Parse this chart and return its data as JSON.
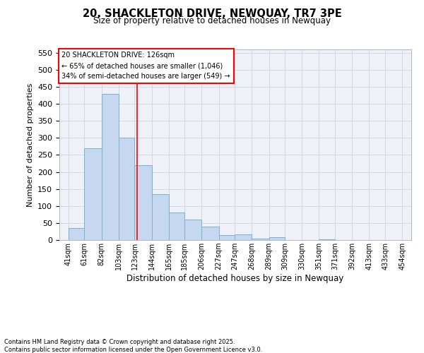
{
  "title": "20, SHACKLETON DRIVE, NEWQUAY, TR7 3PE",
  "subtitle": "Size of property relative to detached houses in Newquay",
  "xlabel": "Distribution of detached houses by size in Newquay",
  "ylabel": "Number of detached properties",
  "bar_left_edges": [
    41,
    61,
    82,
    103,
    123,
    144,
    165,
    185,
    206,
    227,
    247,
    268,
    289,
    309,
    330,
    351,
    371,
    392,
    413,
    433
  ],
  "bar_widths": [
    20,
    21,
    21,
    20,
    21,
    21,
    20,
    21,
    21,
    20,
    21,
    21,
    20,
    21,
    21,
    20,
    21,
    21,
    20,
    21
  ],
  "bar_heights": [
    35,
    270,
    430,
    300,
    220,
    135,
    80,
    60,
    40,
    15,
    17,
    5,
    8,
    0,
    0,
    3,
    0,
    0,
    0,
    0
  ],
  "bar_color": "#c5d8f0",
  "bar_edge_color": "#7bafd4",
  "x_tick_labels": [
    "41sqm",
    "61sqm",
    "82sqm",
    "103sqm",
    "123sqm",
    "144sqm",
    "165sqm",
    "185sqm",
    "206sqm",
    "227sqm",
    "247sqm",
    "268sqm",
    "289sqm",
    "309sqm",
    "330sqm",
    "351sqm",
    "371sqm",
    "392sqm",
    "413sqm",
    "433sqm",
    "454sqm"
  ],
  "x_tick_positions": [
    41,
    61,
    82,
    103,
    123,
    144,
    165,
    185,
    206,
    227,
    247,
    268,
    289,
    309,
    330,
    351,
    371,
    392,
    413,
    433,
    454
  ],
  "ylim": [
    0,
    560
  ],
  "xlim": [
    30,
    465
  ],
  "red_line_x": 126,
  "annotation_box_text": "20 SHACKLETON DRIVE: 126sqm\n← 65% of detached houses are smaller (1,046)\n34% of semi-detached houses are larger (549) →",
  "grid_color": "#d0d8e8",
  "background_color": "#eef2f8",
  "footer_text": "Contains HM Land Registry data © Crown copyright and database right 2025.\nContains public sector information licensed under the Open Government Licence v3.0.",
  "yticks": [
    0,
    50,
    100,
    150,
    200,
    250,
    300,
    350,
    400,
    450,
    500,
    550
  ]
}
